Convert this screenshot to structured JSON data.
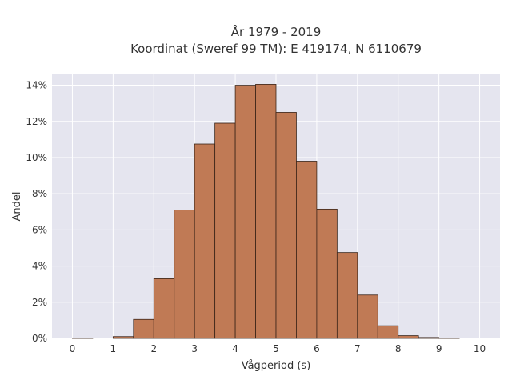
{
  "chart_data": {
    "type": "bar",
    "title_line1": "År 1979 - 2019",
    "title_line2": "Koordinat (Sweref 99 TM): E 419174, N 6110679",
    "xlabel": "Vågperiod (s)",
    "ylabel": "Andel",
    "x_ticks": [
      "0",
      "1",
      "2",
      "3",
      "4",
      "5",
      "6",
      "7",
      "8",
      "9",
      "10"
    ],
    "y_ticks": [
      "0%",
      "2%",
      "4%",
      "6%",
      "8%",
      "10%",
      "12%",
      "14%"
    ],
    "xlim": [
      -0.5,
      10.5
    ],
    "ylim": [
      0,
      14.6
    ],
    "bin_width": 0.5,
    "bin_edges_start": [
      0,
      1,
      1.5,
      2,
      2.5,
      3,
      3.5,
      4,
      4.5,
      5,
      5.5,
      6,
      6.5,
      7,
      7.5,
      8,
      8.5,
      9
    ],
    "values": [
      0.02,
      0.1,
      1.05,
      3.3,
      7.1,
      10.75,
      11.9,
      14.0,
      14.05,
      12.5,
      9.8,
      7.15,
      4.75,
      2.4,
      0.7,
      0.15,
      0.05,
      0.02
    ],
    "bar_color": "#c07a55",
    "bar_edge_color": "#3a2418",
    "background_color": "#e5e5ef",
    "grid": true
  }
}
